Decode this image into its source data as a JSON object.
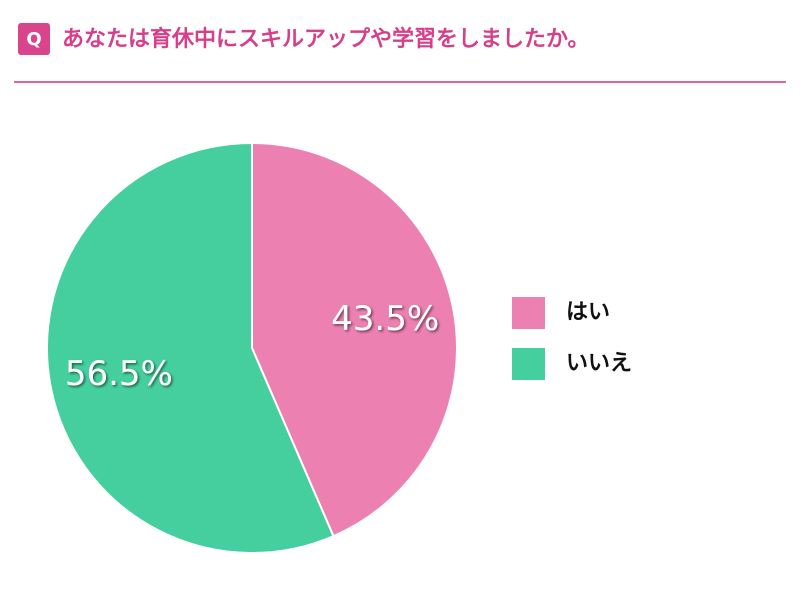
{
  "chart_data": {
    "type": "pie",
    "badge": "Q",
    "title": "あなたは育休中にスキルアップや学習をしましたか。",
    "categories": [
      "はい",
      "いいえ"
    ],
    "values": [
      43.5,
      56.5
    ],
    "value_labels": [
      "43.5%",
      "56.5%"
    ],
    "colors": [
      "#ec80b1",
      "#45cf9f"
    ],
    "legend": "right"
  }
}
